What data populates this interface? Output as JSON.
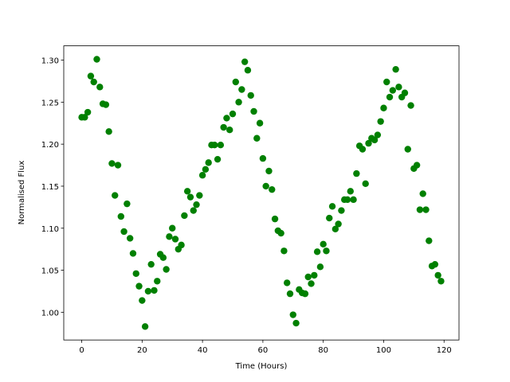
{
  "chart_data": {
    "type": "scatter",
    "xlabel": "Time (Hours)",
    "ylabel": "Normalised Flux",
    "color": "#008000",
    "x": [
      0,
      1,
      2,
      3,
      4,
      5,
      6,
      7,
      8,
      9,
      10,
      11,
      12,
      13,
      14,
      15,
      16,
      17,
      18,
      19,
      20,
      21,
      22,
      23,
      24,
      25,
      26,
      27,
      28,
      29,
      30,
      31,
      32,
      33,
      34,
      35,
      36,
      37,
      38,
      39,
      40,
      41,
      42,
      43,
      44,
      45,
      46,
      47,
      48,
      49,
      50,
      51,
      52,
      53,
      54,
      55,
      56,
      57,
      58,
      59,
      60,
      61,
      62,
      63,
      64,
      65,
      66,
      67,
      68,
      69,
      70,
      71,
      72,
      73,
      74,
      75,
      76,
      77,
      78,
      79,
      80,
      81,
      82,
      83,
      84,
      85,
      86,
      87,
      88,
      89,
      90,
      91,
      92,
      93,
      94,
      95,
      96,
      97,
      98,
      99,
      100,
      101,
      102,
      103,
      104,
      105,
      106,
      107,
      108,
      109,
      110,
      111,
      112,
      113,
      114,
      115,
      116,
      117,
      118,
      119
    ],
    "values": [
      1.232,
      1.232,
      1.238,
      1.281,
      1.274,
      1.301,
      1.268,
      1.248,
      1.247,
      1.215,
      1.177,
      1.139,
      1.175,
      1.114,
      1.096,
      1.129,
      1.088,
      1.07,
      1.046,
      1.031,
      1.014,
      0.983,
      1.025,
      1.057,
      1.026,
      1.037,
      1.069,
      1.065,
      1.051,
      1.09,
      1.1,
      1.087,
      1.075,
      1.08,
      1.115,
      1.144,
      1.137,
      1.121,
      1.128,
      1.139,
      1.163,
      1.17,
      1.178,
      1.199,
      1.199,
      1.182,
      1.199,
      1.22,
      1.231,
      1.217,
      1.236,
      1.274,
      1.25,
      1.265,
      1.298,
      1.288,
      1.258,
      1.239,
      1.207,
      1.225,
      1.183,
      1.15,
      1.168,
      1.146,
      1.111,
      1.097,
      1.094,
      1.073,
      1.035,
      1.022,
      0.997,
      0.987,
      1.027,
      1.023,
      1.022,
      1.042,
      1.034,
      1.044,
      1.072,
      1.054,
      1.081,
      1.073,
      1.112,
      1.126,
      1.099,
      1.105,
      1.121,
      1.134,
      1.134,
      1.144,
      1.134,
      1.165,
      1.198,
      1.194,
      1.153,
      1.201,
      1.207,
      1.205,
      1.211,
      1.227,
      1.243,
      1.274,
      1.256,
      1.264,
      1.289,
      1.268,
      1.256,
      1.261,
      1.194,
      1.246,
      1.171,
      1.175,
      1.122,
      1.141,
      1.122,
      1.085,
      1.055,
      1.057,
      1.044,
      1.037
    ],
    "xlim": [
      -5.95,
      124.95
    ],
    "xticks": [
      0,
      20,
      40,
      60,
      80,
      100,
      120
    ],
    "ylim": [
      0.967,
      1.317
    ],
    "yticks": [
      {
        "value": 1.0,
        "label": "1.00"
      },
      {
        "value": 1.05,
        "label": "1.05"
      },
      {
        "value": 1.1,
        "label": "1.10"
      },
      {
        "value": 1.15,
        "label": "1.15"
      },
      {
        "value": 1.2,
        "label": "1.20"
      },
      {
        "value": 1.25,
        "label": "1.25"
      },
      {
        "value": 1.3,
        "label": "1.30"
      }
    ]
  }
}
